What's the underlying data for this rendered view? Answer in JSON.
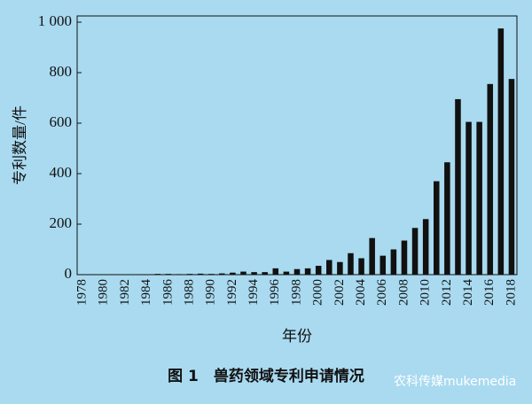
{
  "chart_data": {
    "type": "bar",
    "categories": [
      "1978",
      null,
      "1980",
      null,
      "1982",
      null,
      "1984",
      null,
      "1986",
      null,
      "1988",
      null,
      "1990",
      null,
      "1992",
      null,
      "1994",
      null,
      "1996",
      null,
      "1998",
      null,
      "2000",
      null,
      "2002",
      null,
      "2004",
      null,
      "2006",
      null,
      "2008",
      null,
      "2010",
      null,
      "2012",
      null,
      "2014",
      null,
      "2016",
      null,
      "2018"
    ],
    "values": [
      0,
      0,
      0,
      0,
      0,
      0,
      1,
      3,
      3,
      2,
      3,
      4,
      3,
      5,
      8,
      12,
      10,
      10,
      25,
      12,
      22,
      25,
      35,
      58,
      50,
      85,
      65,
      145,
      75,
      100,
      135,
      185,
      220,
      370,
      445,
      695,
      605,
      605,
      755,
      975,
      775
    ],
    "color": "#111111",
    "ylim": [
      0,
      1000
    ],
    "yticks": [
      0,
      200,
      400,
      600,
      800,
      {
        "value": 1000,
        "label": "1 000"
      }
    ],
    "ylabel": "专利数量/件",
    "xlabel": "年份",
    "caption": "图 1　兽药领域专利申请情况",
    "watermark": "农科传媒mukemedia"
  }
}
